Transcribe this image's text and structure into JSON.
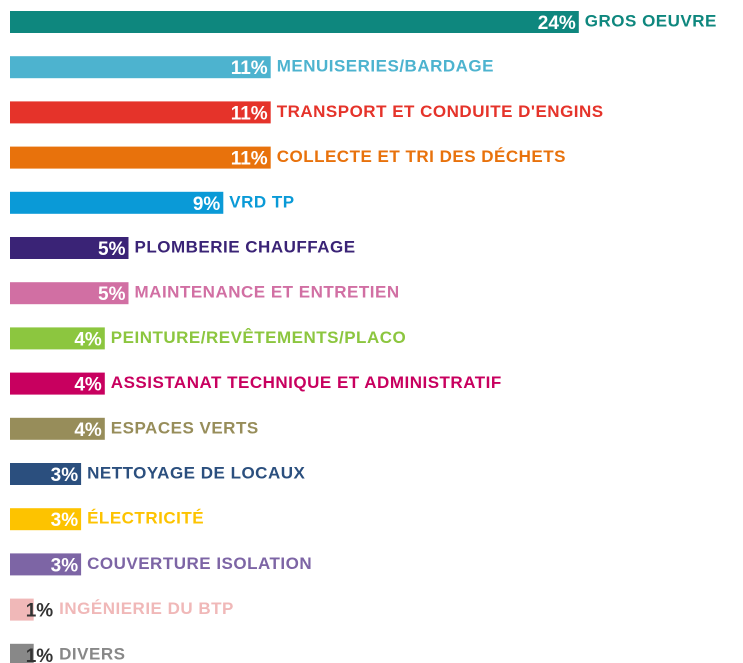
{
  "chart_data": {
    "type": "hbar",
    "categories": [
      "GROS OEUVRE",
      "MENUISERIES/BARDAGE",
      "TRANSPORT ET CONDUITE D'ENGINS",
      "COLLECTE ET TRI DES DÉCHETS",
      "VRD TP",
      "PLOMBERIE CHAUFFAGE",
      "MAINTENANCE ET ENTRETIEN",
      "PEINTURE/REVÊTEMENTS/PLACO",
      "ASSISTANAT TECHNIQUE ET ADMINISTRATIF",
      "ESPACES VERTS",
      "NETTOYAGE DE LOCAUX",
      "ÉLECTRICITÉ",
      "COUVERTURE ISOLATION",
      "INGÉNIERIE DU BTP",
      "DIVERS"
    ],
    "values": [
      24,
      11,
      11,
      11,
      9,
      5,
      5,
      4,
      4,
      4,
      3,
      3,
      3,
      1,
      1
    ],
    "value_labels": [
      "24%",
      "11%",
      "11%",
      "11%",
      "9%",
      "5%",
      "5%",
      "4%",
      "4%",
      "4%",
      "3%",
      "3%",
      "3%",
      "1%",
      "1%"
    ],
    "colors": [
      "#0e877e",
      "#4db3cf",
      "#e5332a",
      "#e8720c",
      "#0a9ad7",
      "#3a2376",
      "#d16fa3",
      "#8cc63f",
      "#c8005f",
      "#978d5a",
      "#2b4f7e",
      "#fdc300",
      "#7d65a5",
      "#f0b8b8",
      "#888888"
    ]
  }
}
